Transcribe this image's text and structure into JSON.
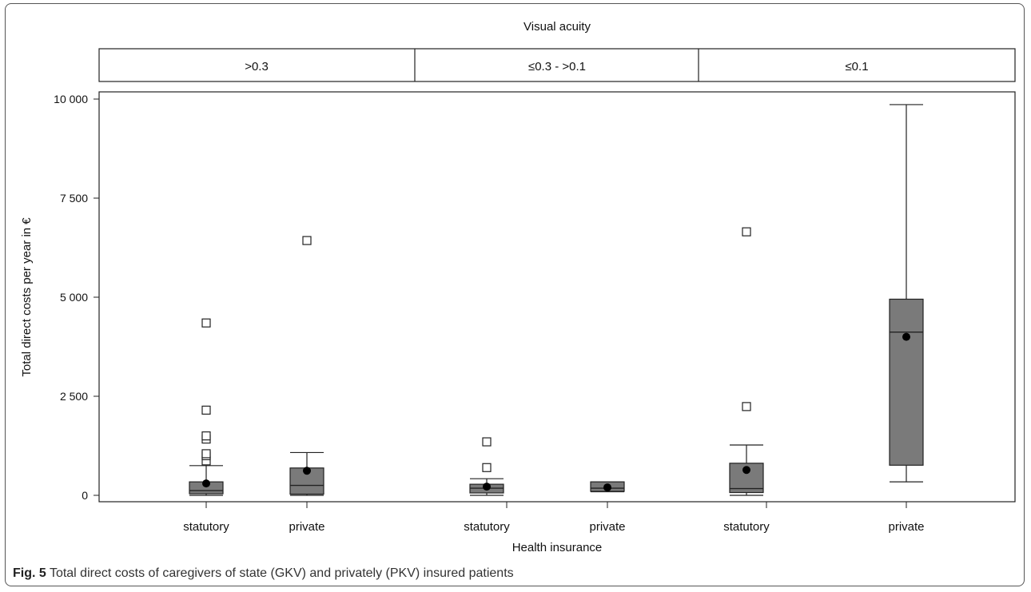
{
  "chart_data": {
    "type": "box",
    "panel_header": "Visual acuity",
    "panels": [
      ">0.3",
      "≤0.3 - >0.1",
      "≤0.1"
    ],
    "categories": [
      "statutory",
      "private",
      "statutory",
      "private",
      "statutory",
      "private"
    ],
    "xlabel": "Health insurance",
    "ylabel": "Total direct costs per year in €",
    "ylim": [
      -150,
      10350
    ],
    "yticks": [
      0,
      2500,
      5000,
      7500,
      10000
    ],
    "ytick_labels": [
      "0",
      "2 500",
      "5 000",
      "7 500",
      "10 000"
    ],
    "grid": false,
    "boxes": [
      {
        "panel": ">0.3",
        "category": "statutory",
        "whisker_low": 0,
        "q1": 40,
        "median": 120,
        "q3": 340,
        "whisker_high": 750,
        "mean": 300,
        "outliers": [
          870,
          1000,
          1050,
          1420,
          1500,
          2150,
          4350
        ]
      },
      {
        "panel": ">0.3",
        "category": "private",
        "whisker_low": 0,
        "q1": 30,
        "median": 250,
        "q3": 690,
        "whisker_high": 1080,
        "mean": 620,
        "outliers": [
          6430
        ]
      },
      {
        "panel": "≤0.3 - >0.1",
        "category": "statutory",
        "whisker_low": 0,
        "q1": 60,
        "median": 180,
        "q3": 280,
        "whisker_high": 420,
        "mean": 220,
        "outliers": [
          700,
          1350
        ]
      },
      {
        "panel": "≤0.3 - >0.1",
        "category": "private",
        "whisker_low": 90,
        "q1": 100,
        "median": 180,
        "q3": 340,
        "whisker_high": 340,
        "mean": 200,
        "outliers": []
      },
      {
        "panel": "≤0.1",
        "category": "statutory",
        "whisker_low": 0,
        "q1": 70,
        "median": 170,
        "q3": 810,
        "whisker_high": 1270,
        "mean": 640,
        "outliers": [
          2240,
          6650
        ]
      },
      {
        "panel": "≤0.1",
        "category": "private",
        "whisker_low": 340,
        "q1": 760,
        "median": 4120,
        "q3": 4950,
        "whisker_high": 9860,
        "mean": 4000,
        "outliers": []
      }
    ],
    "colors": {
      "box_fill": "#7a7a7a",
      "line": "#222222",
      "mean_marker": "#000000",
      "outlier_marker": "#ffffff"
    }
  },
  "caption": {
    "label": "Fig. 5",
    "text": "Total direct costs of caregivers of state (GKV) and privately (PKV) insured patients"
  }
}
